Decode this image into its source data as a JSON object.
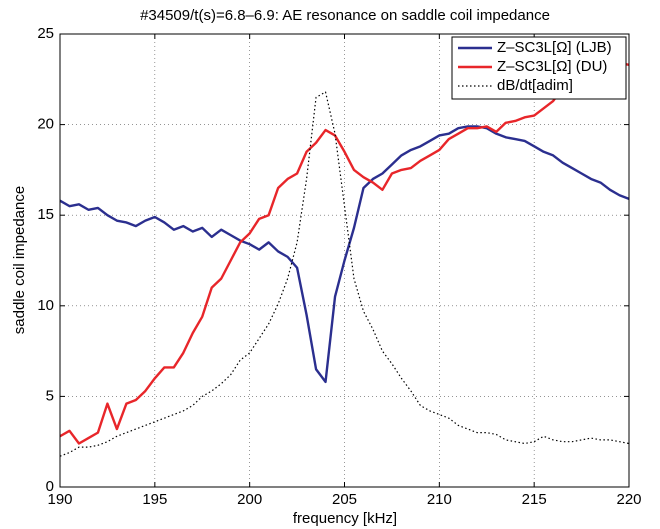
{
  "chart_data": {
    "type": "line",
    "title": "#34509/t(s)=6.8–6.9: AE resonance on saddle coil impedance",
    "xlabel": "frequency [kHz]",
    "ylabel": "saddle coil impedance",
    "x": [
      190,
      190.5,
      191,
      191.5,
      192,
      192.5,
      193,
      193.5,
      194,
      194.5,
      195,
      195.5,
      196,
      196.5,
      197,
      197.5,
      198,
      198.5,
      199,
      199.5,
      200,
      200.5,
      201,
      201.5,
      202,
      202.5,
      203,
      203.5,
      204,
      204.5,
      205,
      205.5,
      206,
      206.5,
      207,
      207.5,
      208,
      208.5,
      209,
      209.5,
      210,
      210.5,
      211,
      211.5,
      212,
      212.5,
      213,
      213.5,
      214,
      214.5,
      215,
      215.5,
      216,
      216.5,
      217,
      217.5,
      218,
      218.5,
      219,
      219.5,
      220
    ],
    "series": [
      {
        "name": "Z–SC3L[Ω] (LJB)",
        "color": "#2b2f8f",
        "dash": "solid",
        "values": [
          15.8,
          15.5,
          15.6,
          15.3,
          15.4,
          15.0,
          14.7,
          14.6,
          14.4,
          14.7,
          14.9,
          14.6,
          14.2,
          14.4,
          14.1,
          14.3,
          13.8,
          14.2,
          13.9,
          13.6,
          13.4,
          13.1,
          13.5,
          13.0,
          12.7,
          12.1,
          9.5,
          6.5,
          5.8,
          10.5,
          12.5,
          14.3,
          16.5,
          17.0,
          17.3,
          17.8,
          18.3,
          18.6,
          18.8,
          19.1,
          19.4,
          19.5,
          19.8,
          19.9,
          19.9,
          19.8,
          19.5,
          19.3,
          19.2,
          19.1,
          18.8,
          18.5,
          18.3,
          17.9,
          17.6,
          17.3,
          17.0,
          16.8,
          16.4,
          16.1,
          15.9
        ]
      },
      {
        "name": "Z–SC3L[Ω] (DU)",
        "color": "#e8262a",
        "dash": "solid",
        "values": [
          2.8,
          3.1,
          2.4,
          2.7,
          3.0,
          4.6,
          3.2,
          4.6,
          4.8,
          5.3,
          6.0,
          6.6,
          6.6,
          7.4,
          8.5,
          9.4,
          11.0,
          11.5,
          12.5,
          13.5,
          14.0,
          14.8,
          15.0,
          16.5,
          17.0,
          17.3,
          18.5,
          19.0,
          19.7,
          19.4,
          18.5,
          17.5,
          17.1,
          16.8,
          16.4,
          17.3,
          17.5,
          17.6,
          18.0,
          18.3,
          18.6,
          19.2,
          19.5,
          19.8,
          19.8,
          19.9,
          19.6,
          20.1,
          20.2,
          20.4,
          20.5,
          20.9,
          21.3,
          22.0,
          22.2,
          22.8,
          23.4,
          23.5,
          23.3,
          23.4,
          23.3
        ]
      },
      {
        "name": "dB/dt[adim]",
        "color": "#000000",
        "dash": "dotted",
        "values": [
          1.7,
          1.9,
          2.2,
          2.2,
          2.3,
          2.5,
          2.8,
          3.0,
          3.2,
          3.4,
          3.6,
          3.8,
          4.0,
          4.2,
          4.5,
          5.0,
          5.3,
          5.7,
          6.2,
          7.0,
          7.4,
          8.2,
          9.0,
          10.1,
          11.5,
          13.5,
          17.0,
          21.5,
          21.8,
          19.5,
          15.5,
          11.5,
          9.7,
          8.7,
          7.5,
          6.8,
          6.0,
          5.3,
          4.5,
          4.2,
          4.0,
          3.8,
          3.4,
          3.2,
          3.0,
          3.0,
          2.9,
          2.6,
          2.5,
          2.4,
          2.5,
          2.8,
          2.6,
          2.5,
          2.5,
          2.6,
          2.7,
          2.6,
          2.6,
          2.5,
          2.4
        ]
      }
    ],
    "xlim": [
      190,
      220
    ],
    "xticks": [
      190,
      195,
      200,
      205,
      210,
      215,
      220
    ],
    "ylim": [
      0,
      25
    ],
    "yticks": [
      0,
      5,
      10,
      15,
      20,
      25
    ],
    "grid": true,
    "legend": "upper right"
  }
}
